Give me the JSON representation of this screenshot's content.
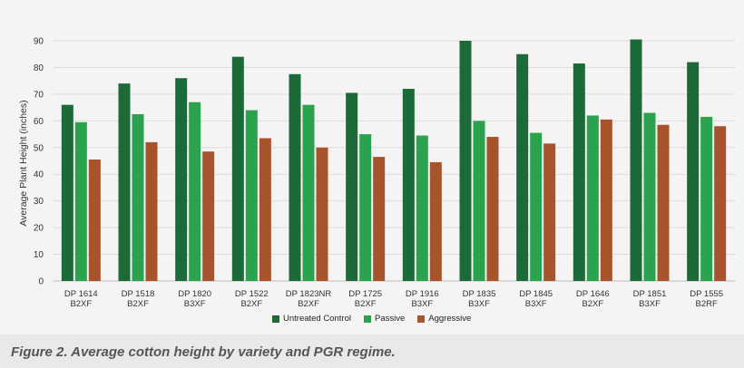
{
  "chart_data": {
    "type": "bar",
    "categories": [
      [
        "DP 1614",
        "B2XF"
      ],
      [
        "DP 1518",
        "B2XF"
      ],
      [
        "DP 1820",
        "B3XF"
      ],
      [
        "DP 1522",
        "B2XF"
      ],
      [
        "DP 1823NR",
        "B2XF"
      ],
      [
        "DP 1725",
        "B2XF"
      ],
      [
        "DP 1916",
        "B3XF"
      ],
      [
        "DP 1835",
        "B3XF"
      ],
      [
        "DP 1845",
        "B3XF"
      ],
      [
        "DP 1646",
        "B2XF"
      ],
      [
        "DP 1851",
        "B3XF"
      ],
      [
        "DP 1555",
        "B2RF"
      ]
    ],
    "series": [
      {
        "name": "Untreated Control",
        "color": "#1c6a38",
        "values": [
          66,
          74,
          76,
          84,
          77.5,
          70.5,
          72,
          90,
          85,
          81.5,
          90.5,
          82
        ]
      },
      {
        "name": "Passive",
        "color": "#2aa24e",
        "values": [
          59.5,
          62.5,
          67,
          64,
          66,
          55,
          54.5,
          60,
          55.5,
          62,
          63,
          61.5
        ]
      },
      {
        "name": "Aggressive",
        "color": "#a7532b",
        "values": [
          45.5,
          52,
          48.5,
          53.5,
          50,
          46.5,
          44.5,
          54,
          51.5,
          60.5,
          58.5,
          58
        ]
      }
    ],
    "xlabel": "",
    "ylabel": "Average Plant Height (inches)",
    "ylim": [
      0,
      90
    ],
    "yticks": [
      0,
      10,
      20,
      30,
      40,
      50,
      60,
      70,
      80,
      90
    ],
    "grid": true,
    "legend_position": "bottom"
  },
  "caption": "Figure 2. Average cotton height by variety and PGR regime.",
  "colors": {
    "background": "#f4f4f4",
    "grid": "#dcdcdc",
    "caption_band": "#e9e9e9"
  }
}
